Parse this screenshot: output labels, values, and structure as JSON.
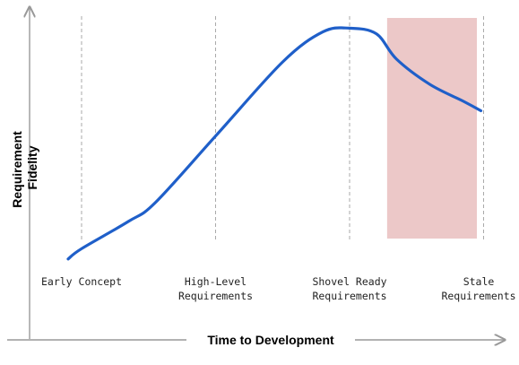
{
  "chart_data": {
    "type": "line",
    "xlabel": "Time to Development",
    "ylabel_lines": [
      "Requirement",
      "Fidelity"
    ],
    "stages": [
      {
        "label_lines": [
          "Early Concept"
        ]
      },
      {
        "label_lines": [
          "High-Level",
          "Requirements"
        ]
      },
      {
        "label_lines": [
          "Shovel Ready",
          "Requirements"
        ]
      },
      {
        "label_lines": [
          "Stale",
          "Requirements"
        ]
      }
    ],
    "curve": {
      "color": "#1f5fc9",
      "x": [
        -0.1,
        0.0,
        0.35,
        0.55,
        1.0,
        1.5,
        1.8,
        2.0,
        2.2,
        2.35,
        2.6,
        2.85,
        2.98
      ],
      "y": [
        0.05,
        0.16,
        0.45,
        0.65,
        1.36,
        2.15,
        2.47,
        2.51,
        2.45,
        2.18,
        1.91,
        1.73,
        1.63
      ]
    },
    "highlight": {
      "x_start": 2.28,
      "x_end": 2.95,
      "color": "#ecc8c8"
    },
    "xlim": [
      -0.3,
      3.1
    ],
    "ylim": [
      0,
      2.6
    ],
    "grid": "vertical-dashed-at-stages",
    "axis_color": "#999999",
    "gridline_color": "#aaaaaa"
  }
}
